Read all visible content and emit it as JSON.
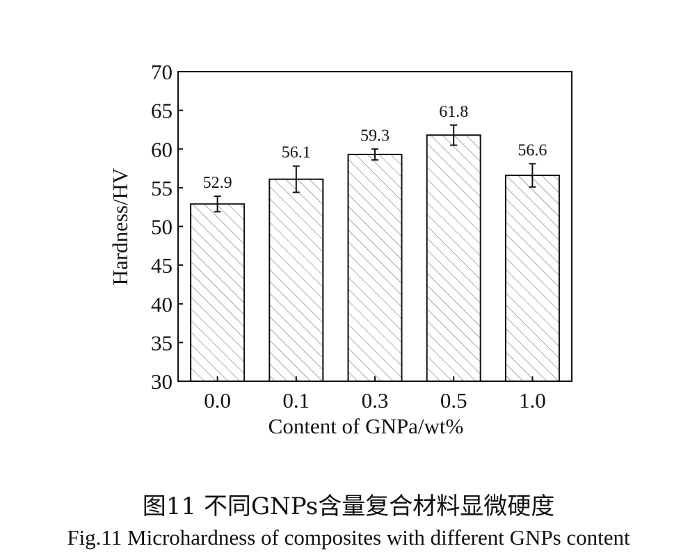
{
  "chart_data": {
    "type": "bar",
    "xlabel": "Content of GNPa/wt%",
    "ylabel": "Hardness/HV",
    "ylim": [
      30,
      70
    ],
    "yticks": [
      30,
      35,
      40,
      45,
      50,
      55,
      60,
      65,
      70
    ],
    "categories": [
      "0.0",
      "0.1",
      "0.3",
      "0.5",
      "1.0"
    ],
    "values": [
      52.9,
      56.1,
      59.3,
      61.8,
      56.6
    ],
    "value_labels": [
      "52.9",
      "56.1",
      "59.3",
      "61.8",
      "56.6"
    ],
    "errors": [
      1.0,
      1.7,
      0.7,
      1.3,
      1.5
    ],
    "bar_fill": "hatched",
    "grid": false,
    "colors": {
      "bar_edge": "#111111",
      "hatch": "#555555",
      "background": "#ffffff"
    }
  },
  "caption": {
    "chinese": "图11 不同GNPs含量复合材料显微硬度",
    "english": "Fig.11  Microhardness of composites with different GNPs content"
  }
}
